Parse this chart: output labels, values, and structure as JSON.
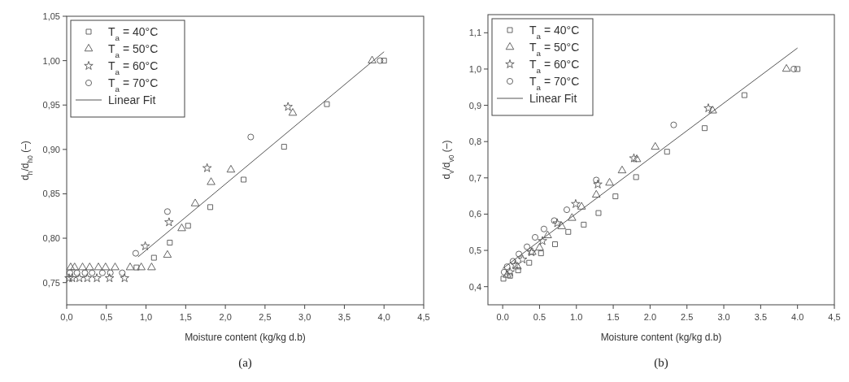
{
  "chart_data": [
    {
      "type": "scatter",
      "xlabel": "Moisture content (kg/kg d.b)",
      "ylabel": "d$_{h}$/d$_{h0}$ (–)",
      "annotations": [
        "(a)"
      ],
      "xlim": [
        0,
        4.5
      ],
      "xticks": [
        {
          "value": 0,
          "label": "0,0"
        },
        {
          "value": 0.5,
          "label": "0,5"
        },
        {
          "value": 1,
          "label": "1,0"
        },
        {
          "value": 1.5,
          "label": "1,5"
        },
        {
          "value": 2,
          "label": "2,0"
        },
        {
          "value": 2.5,
          "label": "2,5"
        },
        {
          "value": 3,
          "label": "3,0"
        },
        {
          "value": 3.5,
          "label": "3,5"
        },
        {
          "value": 4,
          "label": "4,0"
        },
        {
          "value": 4.5,
          "label": "4,5"
        }
      ],
      "ylim": [
        0.725,
        1.05
      ],
      "yticks": [
        {
          "value": 0.75,
          "label": "0,75"
        },
        {
          "value": 0.8,
          "label": "0,80"
        },
        {
          "value": 0.85,
          "label": "0,85"
        },
        {
          "value": 0.9,
          "label": "0,90"
        },
        {
          "value": 0.95,
          "label": "0,95"
        },
        {
          "value": 1.0,
          "label": "1,00"
        },
        {
          "value": 1.05,
          "label": "1,05"
        }
      ],
      "legend": "top left",
      "grid": false,
      "series": [
        {
          "name": "T$_{a}$ = 40°C",
          "color": "#555555",
          "marker": "square",
          "x": [
            0.88,
            1.1,
            1.3,
            1.53,
            1.81,
            2.23,
            2.74,
            3.28,
            4.0
          ],
          "values": [
            0.767,
            0.778,
            0.795,
            0.814,
            0.835,
            0.866,
            0.903,
            0.951,
            1.0
          ]
        },
        {
          "name": "T$_{a}$ = 50°C",
          "color": "#555555",
          "marker": "triangle",
          "x": [
            0.05,
            0.1,
            0.2,
            0.29,
            0.4,
            0.49,
            0.61,
            0.8,
            0.94,
            1.07,
            1.27,
            1.45,
            1.62,
            1.82,
            2.07,
            2.85,
            3.85
          ],
          "values": [
            0.767,
            0.767,
            0.767,
            0.767,
            0.767,
            0.767,
            0.767,
            0.767,
            0.767,
            0.767,
            0.781,
            0.811,
            0.839,
            0.863,
            0.877,
            0.941,
            1.0
          ]
        },
        {
          "name": "T$_{a}$ = 60°C",
          "color": "#555555",
          "marker": "star",
          "x": [
            0.03,
            0.07,
            0.16,
            0.26,
            0.38,
            0.54,
            0.73,
            0.99,
            1.29,
            1.77,
            2.79
          ],
          "values": [
            0.755,
            0.755,
            0.755,
            0.755,
            0.755,
            0.755,
            0.755,
            0.791,
            0.818,
            0.879,
            0.948
          ]
        },
        {
          "name": "T$_{a}$ = 70°C",
          "color": "#555555",
          "marker": "circle",
          "x": [
            0.04,
            0.13,
            0.23,
            0.32,
            0.45,
            0.55,
            0.7,
            0.87,
            1.27,
            2.32,
            3.95
          ],
          "values": [
            0.761,
            0.761,
            0.761,
            0.761,
            0.761,
            0.761,
            0.761,
            0.783,
            0.83,
            0.914,
            1.0
          ]
        },
        {
          "name": "Linear Fit",
          "type": "line",
          "color": "#555555",
          "marker": "none",
          "x": [
            0.9,
            4.0
          ],
          "values": [
            0.779,
            1.01
          ]
        }
      ]
    },
    {
      "type": "scatter",
      "xlabel": "Moisture content (kg/kg d.b)",
      "ylabel": "d$_{v}$/d$_{v0}$ (–)",
      "annotations": [
        "(b)"
      ],
      "xlim": [
        -0.2,
        4.5
      ],
      "xticks": [
        {
          "value": 0,
          "label": "0.0"
        },
        {
          "value": 0.5,
          "label": "0.5"
        },
        {
          "value": 1,
          "label": "1.0"
        },
        {
          "value": 1.5,
          "label": "1.5"
        },
        {
          "value": 2,
          "label": "2.0"
        },
        {
          "value": 2.5,
          "label": "2.5"
        },
        {
          "value": 3,
          "label": "3.0"
        },
        {
          "value": 3.5,
          "label": "3.5"
        },
        {
          "value": 4,
          "label": "4.0"
        },
        {
          "value": 4.5,
          "label": "4,5"
        }
      ],
      "ylim": [
        0.35,
        1.15
      ],
      "yticks": [
        {
          "value": 0.4,
          "label": "0,4"
        },
        {
          "value": 0.5,
          "label": "0,5"
        },
        {
          "value": 0.6,
          "label": "0,6"
        },
        {
          "value": 0.7,
          "label": "0,7"
        },
        {
          "value": 0.8,
          "label": "0,8"
        },
        {
          "value": 0.9,
          "label": "0,9"
        },
        {
          "value": 1.0,
          "label": "1,0"
        },
        {
          "value": 1.1,
          "label": "1,1"
        }
      ],
      "legend": "top left",
      "grid": false,
      "series": [
        {
          "name": "T$_{a}$ = 40°C",
          "color": "#555555",
          "marker": "square",
          "x": [
            0.01,
            0.1,
            0.21,
            0.36,
            0.52,
            0.71,
            0.89,
            1.1,
            1.3,
            1.53,
            1.81,
            2.23,
            2.74,
            3.28,
            4.0
          ],
          "values": [
            0.422,
            0.43,
            0.445,
            0.466,
            0.492,
            0.517,
            0.551,
            0.571,
            0.603,
            0.649,
            0.702,
            0.772,
            0.837,
            0.928,
            1.0
          ]
        },
        {
          "name": "T$_{a}$ = 50°C",
          "color": "#555555",
          "marker": "triangle",
          "x": [
            0.06,
            0.2,
            0.4,
            0.5,
            0.61,
            0.8,
            0.94,
            1.07,
            1.27,
            1.45,
            1.62,
            1.82,
            2.07,
            2.85,
            3.85
          ],
          "values": [
            0.432,
            0.455,
            0.495,
            0.507,
            0.541,
            0.566,
            0.589,
            0.62,
            0.653,
            0.686,
            0.72,
            0.751,
            0.785,
            0.885,
            1.0
          ]
        },
        {
          "name": "T$_{a}$ = 60°C",
          "color": "#555555",
          "marker": "star",
          "x": [
            0.1,
            0.17,
            0.27,
            0.39,
            0.54,
            0.74,
            0.99,
            1.29,
            1.78,
            2.79
          ],
          "values": [
            0.44,
            0.46,
            0.475,
            0.495,
            0.526,
            0.575,
            0.628,
            0.682,
            0.754,
            0.892
          ]
        },
        {
          "name": "T$_{a}$ = 70°C",
          "color": "#555555",
          "marker": "circle",
          "x": [
            0.02,
            0.06,
            0.14,
            0.22,
            0.33,
            0.44,
            0.56,
            0.7,
            0.87,
            1.27,
            2.32,
            3.95
          ],
          "values": [
            0.44,
            0.455,
            0.47,
            0.49,
            0.51,
            0.536,
            0.559,
            0.582,
            0.612,
            0.694,
            0.846,
            1.0
          ]
        },
        {
          "name": "Linear Fit",
          "type": "line",
          "color": "#555555",
          "marker": "none",
          "x": [
            0.0,
            4.0
          ],
          "values": [
            0.45,
            1.058
          ]
        }
      ]
    }
  ]
}
